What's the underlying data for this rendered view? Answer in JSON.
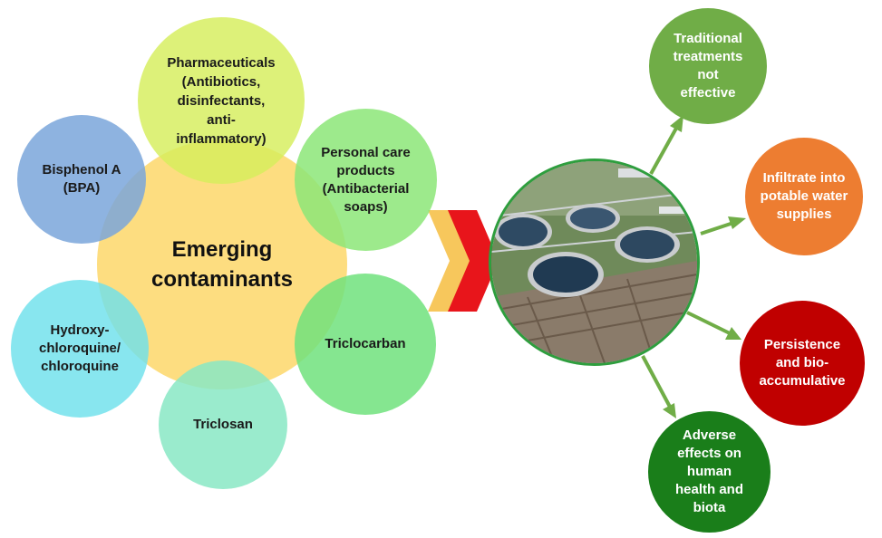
{
  "center": {
    "label": "Emerging contaminants"
  },
  "contaminants": [
    {
      "key": "pharma",
      "label": "Pharmaceuticals (Antibiotics, disinfectants, anti-inflammatory)"
    },
    {
      "key": "bpa",
      "label": "Bisphenol A (BPA)"
    },
    {
      "key": "pcp",
      "label": "Personal care products (Antibacterial soaps)"
    },
    {
      "key": "hcq",
      "label": "Hydroxy-chloroquine/ chloroquine"
    },
    {
      "key": "tcs",
      "label": "Triclosan"
    },
    {
      "key": "tcc",
      "label": "Triclocarban"
    }
  ],
  "pharma_lines": [
    "Pharmaceuticals",
    "(Antibiotics,",
    "disinfectants,",
    "anti-",
    "inflammatory)"
  ],
  "bpa_lines": [
    "Bisphenol A",
    "(BPA)"
  ],
  "pcp_lines": [
    "Personal care",
    "products",
    "(Antibacterial",
    "soaps)"
  ],
  "hcq_lines": [
    "Hydroxy-",
    "chloroquine/",
    "chloroquine"
  ],
  "center_lines": [
    "Emerging",
    "contaminants"
  ],
  "outcomes": {
    "o1": [
      "Traditional",
      "treatments",
      "not",
      "effective"
    ],
    "o2": [
      "Infiltrate into",
      "potable water",
      "supplies"
    ],
    "o3": [
      "Persistence",
      "and bio-",
      "accumulative"
    ],
    "o4": [
      "Adverse",
      "effects on",
      "human",
      "health and",
      "biota"
    ]
  },
  "image": {
    "subject": "wastewater treatment plant aerial photo"
  },
  "colors": {
    "center": "#fdd564",
    "outcome_green": "#70ad47",
    "outcome_orange": "#ed7d31",
    "outcome_red": "#c00000",
    "outcome_darkgreen": "#1a7e1a",
    "arrow_green": "#70ad47",
    "chevron_red": "#e8151b",
    "chevron_yellow": "#f7c75c"
  }
}
